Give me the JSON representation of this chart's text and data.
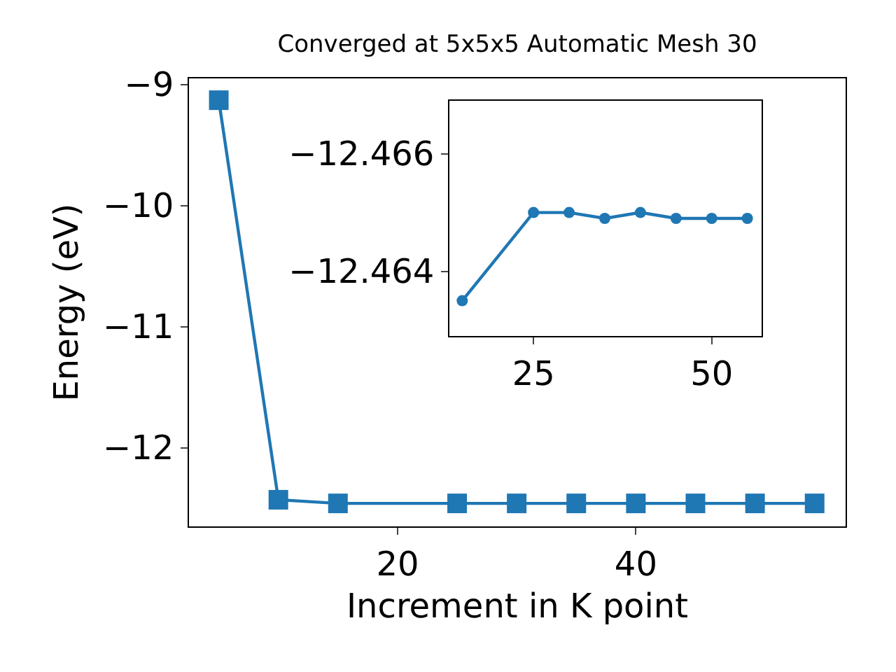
{
  "chart_data": [
    {
      "type": "line",
      "title": "Converged at 5x5x5 Automatic Mesh 30",
      "xlabel": "Increment in K point",
      "ylabel": "Energy (eV)",
      "x": [
        5,
        10,
        15,
        25,
        30,
        35,
        40,
        45,
        50,
        55
      ],
      "series": [
        {
          "color": "#1f77b4",
          "values": [
            -9.13,
            -12.43,
            -12.46,
            -12.46,
            -12.46,
            -12.46,
            -12.46,
            -12.46,
            -12.46,
            -12.46
          ]
        }
      ],
      "marker": "square",
      "line_style": "solid",
      "xlim": [
        2.5,
        57.6
      ],
      "xticks": [
        20,
        40
      ],
      "ylim": [
        -12.65,
        -8.95
      ],
      "yticks": [
        -12,
        -11,
        -10,
        -9
      ]
    },
    {
      "type": "line",
      "x": [
        15,
        25,
        30,
        35,
        40,
        45,
        50,
        55
      ],
      "series": [
        {
          "color": "#1f77b4",
          "values": [
            -12.4635,
            -12.465,
            -12.465,
            -12.4649,
            -12.465,
            -12.4649,
            -12.4649,
            -12.4649
          ]
        }
      ],
      "marker": "circle",
      "line_style": "solid",
      "xlim": [
        13.2,
        57.0
      ],
      "xticks": [
        25,
        50
      ],
      "ylim": [
        -12.4629,
        -12.4669
      ],
      "yticks": [
        -12.466,
        -12.464
      ]
    }
  ]
}
